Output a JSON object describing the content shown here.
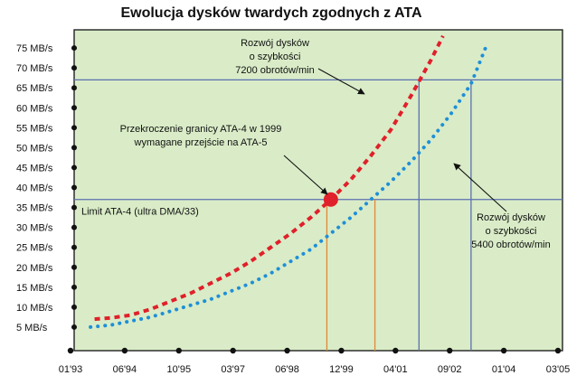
{
  "chart_data": {
    "type": "line",
    "title": "Ewolucja dysków twardych zgodnych z ATA",
    "x_ticks": [
      "01'93",
      "06'94",
      "10'95",
      "03'97",
      "06'98",
      "12'99",
      "04'01",
      "09'02",
      "01'04",
      "03'05"
    ],
    "y_ticks": [
      "5  MB/s",
      "10 MB/s",
      "15 MB/s",
      "20 MB/s",
      "25 MB/s",
      "30 MB/s",
      "35 MB/s",
      "40 MB/s",
      "45 MB/s",
      "50 MB/s",
      "55 MB/s",
      "60 MB/s",
      "65 MB/s",
      "70 MB/s",
      "75 MB/s"
    ],
    "xlim": [
      1993.0,
      2005.17
    ],
    "ylim": [
      0,
      80
    ],
    "grid": false,
    "colors": {
      "background": "#d9ecc7",
      "series_7200": "#e0202a",
      "series_5400": "#1e8fd8",
      "ref_lines": "#5b6fb0",
      "drop_lines": "#e08838",
      "marker": "#e0202a"
    },
    "series": [
      {
        "id": "7200",
        "x": [
          1993.6,
          1994.0,
          1994.5,
          1995.0,
          1995.5,
          1996.0,
          1996.5,
          1997.0,
          1997.5,
          1998.0,
          1998.5,
          1999.0,
          1999.5,
          2000.0,
          2000.5,
          2001.0,
          2001.5,
          2002.0,
          2002.3
        ],
        "values": [
          7,
          7.3,
          8,
          9.5,
          11.5,
          13.5,
          16,
          18.5,
          21.5,
          25,
          28.5,
          32.5,
          37,
          42,
          48,
          54.5,
          63,
          72,
          78
        ]
      },
      {
        "id": "5400",
        "x": [
          1993.5,
          1994.0,
          1994.5,
          1995.0,
          1995.5,
          1996.0,
          1996.5,
          1997.0,
          1997.5,
          1998.0,
          1998.5,
          1999.0,
          1999.5,
          2000.0,
          2000.5,
          2001.0,
          2001.5,
          2002.0,
          2002.5,
          2003.0,
          2003.4
        ],
        "values": [
          5,
          5.5,
          6.5,
          7.5,
          9,
          10.5,
          12,
          14,
          16,
          18.5,
          21.5,
          24.5,
          28.5,
          32.5,
          37,
          41.5,
          46.5,
          52,
          58.5,
          66,
          76
        ]
      }
    ],
    "horizontal_lines": [
      {
        "y": 67,
        "label": ""
      },
      {
        "y": 37,
        "label": "Limit ATA-4 (ultra DMA/33)"
      }
    ],
    "vertical_lines": [
      {
        "x": 1999.4,
        "y_top": 37,
        "color": "drop_lines"
      },
      {
        "x": 2000.6,
        "y_top": 37,
        "color": "drop_lines"
      },
      {
        "x": 2001.7,
        "y_top": 67,
        "color": "ref_lines"
      },
      {
        "x": 2003.0,
        "y_top": 67,
        "color": "ref_lines"
      }
    ],
    "highlight_point": {
      "x": 1999.5,
      "y": 37
    },
    "annotations": [
      {
        "id": "ann7200",
        "lines": [
          "Rozwój dysków",
          "o szybkości",
          "7200 obrotów/min"
        ]
      },
      {
        "id": "annLimit",
        "lines": [
          "Przekroczenie granicy ATA-4 w 1999",
          "wymagane przejście na ATA-5"
        ]
      },
      {
        "id": "ann5400",
        "lines": [
          "Rozwój dysków",
          "o szybkości",
          "5400 obrotów/min"
        ]
      }
    ]
  }
}
